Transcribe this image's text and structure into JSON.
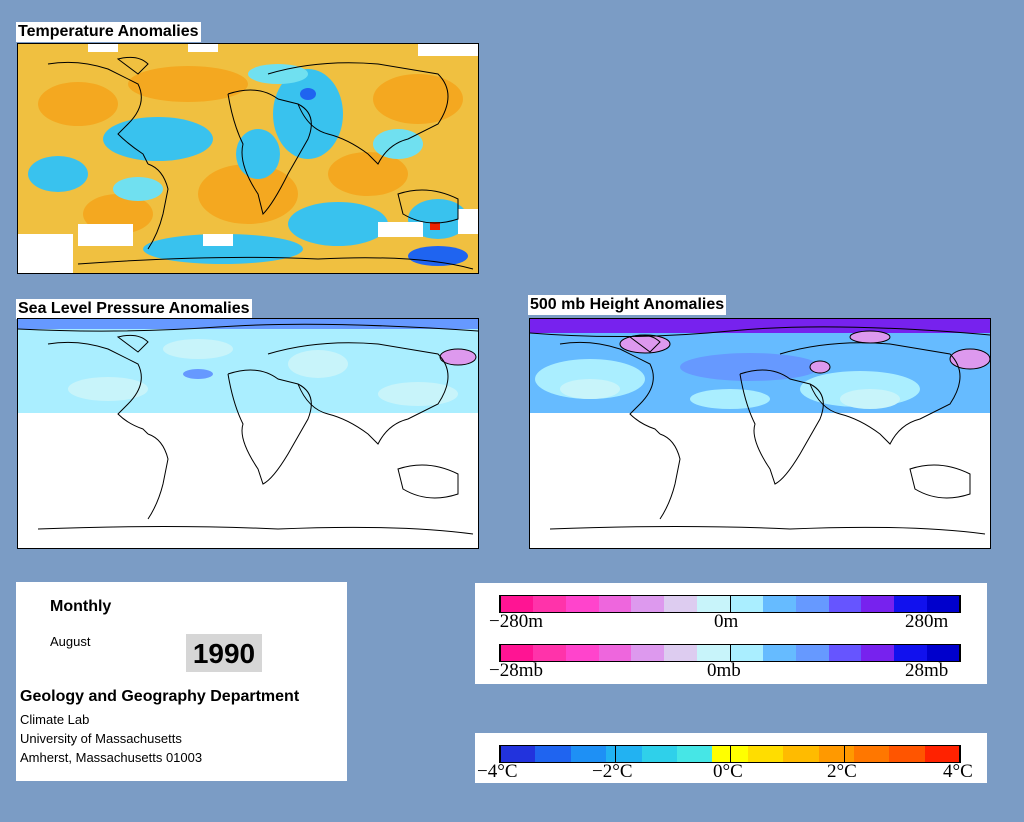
{
  "panels": {
    "temperature": {
      "title": "Temperature Anomalies"
    },
    "slp": {
      "title": "Sea Level Pressure Anomalies"
    },
    "height": {
      "title": "500 mb Height Anomalies"
    }
  },
  "info": {
    "period": "Monthly",
    "month": "August",
    "year": "1990",
    "department": "Geology and Geography Department",
    "lab": "Climate Lab",
    "university": "University of Massachusetts",
    "address": "Amherst, Massachusetts 01003"
  },
  "legend_height": {
    "min": "−280m",
    "mid": "0m",
    "max": "280m"
  },
  "legend_pressure": {
    "min": "−28mb",
    "mid": "0mb",
    "max": "28mb"
  },
  "legend_temp": {
    "t1": "−4°C",
    "t2": "−2°C",
    "t3": "0°C",
    "t4": "2°C",
    "t5": "4°C"
  },
  "colors": {
    "background": "#7b9cc5",
    "temp_scale": [
      "#2233dd",
      "#1f64f0",
      "#1e90f5",
      "#22b2f2",
      "#2fd0ea",
      "#46e6e6",
      "#ffff00",
      "#ffdd00",
      "#ffbb00",
      "#ff9900",
      "#ff7700",
      "#ff5500",
      "#ff2200"
    ],
    "anomaly_scale": [
      "#ff1493",
      "#ff33aa",
      "#ff44cc",
      "#ee66dd",
      "#dd99ee",
      "#ddccf0",
      "#c8f4fa",
      "#aaeeff",
      "#66bbff",
      "#6699ff",
      "#6655ff",
      "#7722ee",
      "#1111ee",
      "#0000cc"
    ]
  }
}
